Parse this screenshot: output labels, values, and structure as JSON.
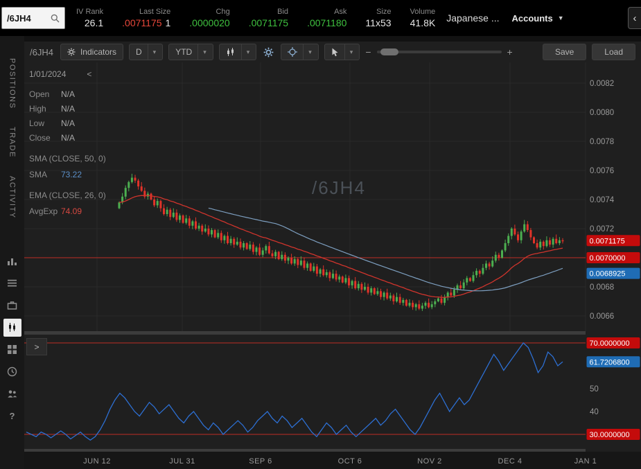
{
  "topbar": {
    "symbol_search": "/6JH4",
    "stats": [
      {
        "label": "IV Rank",
        "value": "26.1",
        "color": "white"
      },
      {
        "label": "Last Size",
        "value": ".0071175",
        "extra": "1",
        "color": "red"
      },
      {
        "label": "Chg",
        "value": ".0000020",
        "color": "green"
      },
      {
        "label": "Bid",
        "value": ".0071175",
        "color": "green"
      },
      {
        "label": "Ask",
        "value": ".0071180",
        "color": "green"
      },
      {
        "label": "Size",
        "value": "11x53",
        "color": "white"
      },
      {
        "label": "Volume",
        "value": "41.8K",
        "color": "white"
      }
    ],
    "instrument_name": "Japanese ...",
    "accounts_label": "Accounts"
  },
  "sidebar": {
    "tabs": [
      "POSITIONS",
      "TRADE",
      "ACTIVITY"
    ],
    "icons": [
      {
        "name": "quote-bars-icon",
        "active": false
      },
      {
        "name": "watchlist-icon",
        "active": false
      },
      {
        "name": "briefcase-icon",
        "active": false
      },
      {
        "name": "candlestick-chart-icon",
        "active": true
      },
      {
        "name": "grid-icon",
        "active": false
      },
      {
        "name": "history-clock-icon",
        "active": false
      },
      {
        "name": "people-icon",
        "active": false
      },
      {
        "name": "help-icon",
        "active": false
      }
    ]
  },
  "toolbar": {
    "symbol_label": "/6JH4",
    "indicators_label": "Indicators",
    "timeframe": "D",
    "range": "YTD",
    "zoom_out": "−",
    "zoom_in": "+",
    "save_label": "Save",
    "load_label": "Load"
  },
  "overlay": {
    "date": "1/01/2024",
    "back": "<",
    "rows": [
      {
        "label": "Open",
        "value": "N/A"
      },
      {
        "label": "High",
        "value": "N/A"
      },
      {
        "label": "Low",
        "value": "N/A"
      },
      {
        "label": "Close",
        "value": "N/A"
      }
    ],
    "sma_header": "SMA (CLOSE, 50, 0)",
    "sma_label": "SMA",
    "sma_value": "73.22",
    "ema_header": "EMA (CLOSE, 26, 0)",
    "ema_label": "AvgExp",
    "ema_value": "74.09"
  },
  "ui": {
    "expander": ">"
  },
  "chart_data": {
    "type": "candlestick",
    "symbol": "/6JH4",
    "watermark": "/6JH4",
    "price_axis_ticks": [
      "0.0082",
      "0.0080",
      "0.0078",
      "0.0076",
      "0.0074",
      "0.0072",
      "0.0070",
      "0.0068",
      "0.0066"
    ],
    "price_range": {
      "min": 0.0066,
      "max": 0.0082
    },
    "time_axis_ticks": [
      "JUN 12",
      "JUL 31",
      "SEP 6",
      "OCT 6",
      "NOV 2",
      "DEC 4",
      "JAN 1"
    ],
    "last_price": "0.0071175",
    "price_flags": [
      {
        "text": "0.0071175",
        "price": 71.175,
        "bg": "#c40b0b"
      },
      {
        "text": "0.0070000",
        "price": 70.0,
        "bg": "#c40b0b"
      },
      {
        "text": "0.0068925",
        "price": 68.925,
        "bg": "#1f6cb5"
      }
    ],
    "level_line": {
      "price": 70.0,
      "color": "#bf2e24"
    },
    "colors": {
      "up": "#4caf50",
      "down": "#e23329",
      "grid": "#2a2a2a",
      "axis_text": "#9a9a9a",
      "watermark": "#4b5158"
    },
    "indicators": {
      "sma": {
        "name": "SMA (CLOSE, 50, 0)",
        "period": 50,
        "color": "#7d9fc0"
      },
      "ema": {
        "name": "EMA (CLOSE, 26, 0)",
        "period": 26,
        "color": "#d0342c"
      }
    },
    "closes_1e4": [
      73.8,
      74.2,
      74.8,
      75.2,
      75.5,
      75.3,
      74.9,
      74.6,
      74.2,
      74.4,
      74.0,
      73.6,
      73.9,
      73.4,
      73.0,
      73.3,
      72.8,
      73.1,
      72.6,
      72.9,
      72.4,
      72.7,
      72.2,
      72.5,
      72.0,
      72.2,
      71.8,
      72.0,
      71.6,
      71.9,
      71.4,
      71.7,
      71.2,
      71.5,
      71.0,
      71.3,
      70.9,
      71.1,
      70.7,
      71.0,
      70.6,
      70.9,
      70.4,
      70.7,
      70.2,
      70.5,
      70.8,
      70.3,
      70.1,
      70.4,
      69.9,
      70.2,
      69.8,
      70.0,
      69.6,
      69.9,
      69.5,
      69.8,
      69.3,
      69.6,
      69.1,
      69.4,
      68.9,
      69.2,
      68.8,
      69.0,
      68.6,
      68.9,
      68.5,
      68.7,
      68.3,
      68.6,
      68.1,
      68.4,
      67.9,
      68.2,
      67.8,
      68.0,
      67.6,
      67.9,
      67.5,
      67.7,
      67.3,
      67.6,
      67.2,
      67.4,
      67.0,
      67.3,
      66.9,
      67.1,
      66.7,
      66.9,
      66.6,
      66.8,
      66.5,
      66.7,
      66.9,
      66.6,
      66.8,
      67.0,
      67.2,
      66.9,
      67.3,
      67.6,
      67.4,
      67.8,
      68.1,
      67.9,
      68.3,
      68.6,
      68.4,
      68.8,
      69.1,
      68.9,
      69.3,
      69.6,
      69.4,
      69.8,
      70.2,
      70.0,
      70.5,
      71.0,
      71.5,
      72.0,
      71.6,
      71.2,
      71.8,
      72.3,
      71.9,
      71.4,
      71.0,
      70.7,
      71.1,
      70.8,
      71.2,
      70.9,
      71.3,
      71.0,
      71.2,
      71.175
    ],
    "rsi": {
      "upper_band": 70,
      "lower_band": 30,
      "band_color": "#bf2e24",
      "line_color": "#2d6fd2",
      "values": [
        31,
        30,
        29,
        31,
        30,
        28.5,
        30,
        31.5,
        30,
        28,
        29.5,
        31,
        29,
        27.5,
        29,
        32,
        36,
        41,
        45,
        48,
        46,
        43,
        40,
        38,
        41,
        44,
        42,
        39,
        41,
        43,
        40,
        37,
        35,
        38,
        40,
        37,
        34,
        32,
        35,
        33,
        30,
        32,
        34,
        36,
        34,
        31,
        33,
        36,
        38,
        40,
        37,
        35,
        38,
        36,
        33,
        35,
        37,
        34,
        31,
        29,
        32,
        35,
        33,
        30,
        32,
        34,
        31,
        29,
        31,
        33,
        35,
        37,
        34,
        36,
        39,
        41,
        38,
        35,
        32,
        30,
        33,
        37,
        41,
        45,
        48,
        44,
        40,
        43,
        46,
        43,
        45,
        49,
        53,
        57,
        61,
        65,
        62,
        58,
        61,
        64,
        67,
        70,
        68,
        63,
        57,
        60,
        66,
        64,
        60,
        61.72
      ],
      "flags": [
        {
          "text": "70.0000000",
          "value": 70,
          "bg": "#c40b0b"
        },
        {
          "text": "61.7206800",
          "value": 61.72068,
          "bg": "#1f6cb5"
        },
        {
          "text": "30.0000000",
          "value": 30,
          "bg": "#c40b0b"
        }
      ],
      "ticks": [
        {
          "text": "50",
          "value": 50
        },
        {
          "text": "40",
          "value": 40
        }
      ]
    }
  }
}
